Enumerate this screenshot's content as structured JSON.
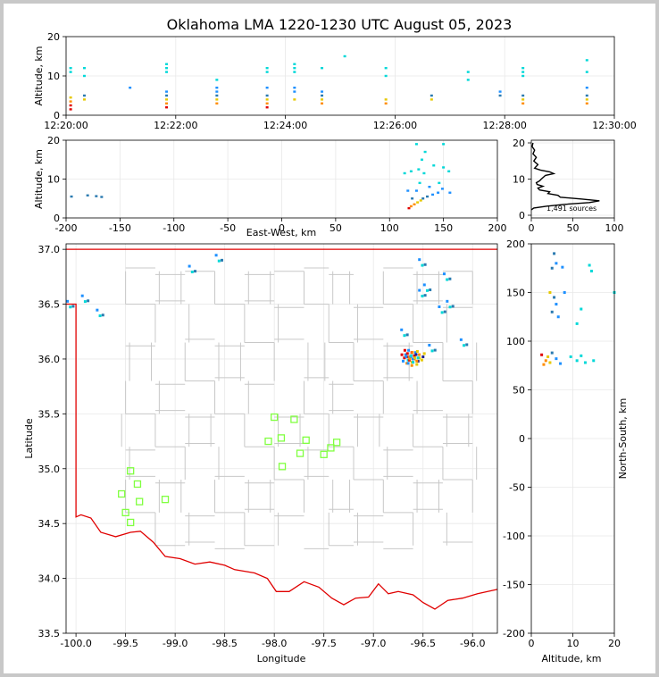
{
  "figure": {
    "title": "Oklahoma LMA 1220-1230 UTC August 05, 2023"
  },
  "colors": {
    "county_lines": "#c8c8c8",
    "border": "#e00000",
    "station": "#80ff40",
    "profile": "#000000"
  },
  "chart_data": [
    {
      "id": "time_height",
      "type": "scatter",
      "xlabel": "",
      "ylabel": "Altitude, km",
      "xlim": [
        "12:20:00",
        "12:30:00"
      ],
      "ylim": [
        0,
        20
      ],
      "xticks": [
        "12:20:00",
        "12:22:00",
        "12:24:00",
        "12:26:00",
        "12:28:00",
        "12:30:00"
      ],
      "yticks": [
        0,
        10,
        20
      ],
      "clusters": [
        {
          "t": "12:20:05",
          "alts": [
            1.5,
            2.5,
            3.5,
            4.5,
            11,
            12
          ]
        },
        {
          "t": "12:20:20",
          "alts": [
            4,
            5,
            10,
            12
          ]
        },
        {
          "t": "12:21:10",
          "alts": [
            7
          ]
        },
        {
          "t": "12:21:50",
          "alts": [
            2,
            3,
            4,
            5,
            6,
            11,
            12,
            13
          ]
        },
        {
          "t": "12:22:45",
          "alts": [
            3,
            4,
            5,
            6,
            7,
            9
          ]
        },
        {
          "t": "12:23:40",
          "alts": [
            2,
            3,
            4,
            5,
            7,
            11,
            12
          ]
        },
        {
          "t": "12:24:10",
          "alts": [
            4,
            6,
            7,
            11,
            12,
            13
          ]
        },
        {
          "t": "12:24:40",
          "alts": [
            3,
            4,
            5,
            6,
            12
          ]
        },
        {
          "t": "12:25:05",
          "alts": [
            15
          ]
        },
        {
          "t": "12:25:50",
          "alts": [
            3,
            4,
            10,
            12
          ]
        },
        {
          "t": "12:26:40",
          "alts": [
            4,
            5
          ]
        },
        {
          "t": "12:27:20",
          "alts": [
            9,
            11
          ]
        },
        {
          "t": "12:27:55",
          "alts": [
            5,
            6
          ]
        },
        {
          "t": "12:28:20",
          "alts": [
            3,
            4,
            5,
            10,
            11,
            12
          ]
        },
        {
          "t": "12:29:30",
          "alts": [
            3,
            4,
            5,
            7,
            11,
            14
          ]
        }
      ]
    },
    {
      "id": "ew_height",
      "type": "scatter",
      "xlabel": "East-West, km",
      "ylabel": "Altitude, km",
      "xlim": [
        -200,
        200
      ],
      "ylim": [
        0,
        20
      ],
      "xticks": [
        -200,
        -150,
        -100,
        -50,
        0,
        50,
        100,
        150,
        200
      ],
      "yticks": [
        0,
        10,
        20
      ],
      "points": [
        {
          "x": -195,
          "y": 5.5
        },
        {
          "x": -180,
          "y": 5.8
        },
        {
          "x": -172,
          "y": 5.6
        },
        {
          "x": -167,
          "y": 5.4
        },
        {
          "x": 118,
          "y": 2.5
        },
        {
          "x": 120,
          "y": 3
        },
        {
          "x": 123,
          "y": 3.5
        },
        {
          "x": 126,
          "y": 4
        },
        {
          "x": 129,
          "y": 4.5
        },
        {
          "x": 121,
          "y": 5
        },
        {
          "x": 131,
          "y": 5
        },
        {
          "x": 135,
          "y": 5.5
        },
        {
          "x": 140,
          "y": 6
        },
        {
          "x": 145,
          "y": 6.5
        },
        {
          "x": 117,
          "y": 7
        },
        {
          "x": 125,
          "y": 7
        },
        {
          "x": 149,
          "y": 7.5
        },
        {
          "x": 137,
          "y": 8
        },
        {
          "x": 128,
          "y": 9
        },
        {
          "x": 146,
          "y": 9
        },
        {
          "x": 156,
          "y": 6.5
        },
        {
          "x": 114,
          "y": 11.5
        },
        {
          "x": 120,
          "y": 12
        },
        {
          "x": 127,
          "y": 12.5
        },
        {
          "x": 132,
          "y": 11.5
        },
        {
          "x": 150,
          "y": 13
        },
        {
          "x": 155,
          "y": 12
        },
        {
          "x": 130,
          "y": 15
        },
        {
          "x": 133,
          "y": 17
        },
        {
          "x": 125,
          "y": 19
        },
        {
          "x": 150,
          "y": 19
        },
        {
          "x": 141,
          "y": 13.5
        }
      ]
    },
    {
      "id": "altitude_histogram",
      "type": "line",
      "xlabel": "",
      "ylabel": "",
      "xlim": [
        0,
        100
      ],
      "ylim": [
        0,
        20
      ],
      "xticks": [
        0,
        50,
        100
      ],
      "yticks": [
        0,
        10,
        20
      ],
      "annotation": "1,491 sources",
      "profile": [
        {
          "alt": 1.5,
          "count": 0
        },
        {
          "alt": 2,
          "count": 3
        },
        {
          "alt": 2.5,
          "count": 18
        },
        {
          "alt": 3,
          "count": 40
        },
        {
          "alt": 3.5,
          "count": 70
        },
        {
          "alt": 4,
          "count": 82
        },
        {
          "alt": 4.5,
          "count": 60
        },
        {
          "alt": 5,
          "count": 35
        },
        {
          "alt": 5.5,
          "count": 32
        },
        {
          "alt": 6,
          "count": 20
        },
        {
          "alt": 6.5,
          "count": 22
        },
        {
          "alt": 7,
          "count": 10
        },
        {
          "alt": 7.5,
          "count": 8
        },
        {
          "alt": 8,
          "count": 14
        },
        {
          "alt": 8.5,
          "count": 7
        },
        {
          "alt": 9,
          "count": 6
        },
        {
          "alt": 9.5,
          "count": 10
        },
        {
          "alt": 10,
          "count": 12
        },
        {
          "alt": 11,
          "count": 17
        },
        {
          "alt": 11.5,
          "count": 27
        },
        {
          "alt": 12,
          "count": 22
        },
        {
          "alt": 12.5,
          "count": 11
        },
        {
          "alt": 13,
          "count": 4
        },
        {
          "alt": 14,
          "count": 8
        },
        {
          "alt": 15,
          "count": 3
        },
        {
          "alt": 16,
          "count": 6
        },
        {
          "alt": 17,
          "count": 2
        },
        {
          "alt": 18,
          "count": 4
        },
        {
          "alt": 19,
          "count": 1
        },
        {
          "alt": 20,
          "count": 2
        }
      ]
    },
    {
      "id": "plan_view",
      "type": "scatter",
      "xlabel": "Longitude",
      "ylabel": "Latitude",
      "xlim": [
        -100.1,
        -95.75
      ],
      "ylim": [
        33.5,
        37.05
      ],
      "xticks": [
        "-100.0",
        "-99.5",
        "-99.0",
        "-98.5",
        "-98.0",
        "-97.5",
        "-97.0",
        "-96.5",
        "-96.0"
      ],
      "yticks": [
        "33.5",
        "34.0",
        "34.5",
        "35.0",
        "35.5",
        "36.0",
        "36.5",
        "37.0"
      ],
      "sources": [
        {
          "lon": -96.65,
          "lat": 36.0
        },
        {
          "lon": -96.6,
          "lat": 35.98
        },
        {
          "lon": -96.55,
          "lat": 36.02
        },
        {
          "lon": -96.62,
          "lat": 36.04
        },
        {
          "lon": -96.5,
          "lat": 36.6
        },
        {
          "lon": -96.45,
          "lat": 36.65
        },
        {
          "lon": -96.5,
          "lat": 36.88
        },
        {
          "lon": -96.25,
          "lat": 36.75
        },
        {
          "lon": -96.3,
          "lat": 36.45
        },
        {
          "lon": -96.22,
          "lat": 36.5
        },
        {
          "lon": -96.08,
          "lat": 36.15
        },
        {
          "lon": -96.68,
          "lat": 36.24
        },
        {
          "lon": -96.4,
          "lat": 36.1
        },
        {
          "lon": -98.82,
          "lat": 36.82
        },
        {
          "lon": -99.75,
          "lat": 36.42
        },
        {
          "lon": -98.55,
          "lat": 36.92
        },
        {
          "lon": -99.9,
          "lat": 36.55
        },
        {
          "lon": -100.05,
          "lat": 36.5
        }
      ],
      "stations": [
        {
          "lon": -98.0,
          "lat": 35.47
        },
        {
          "lon": -97.8,
          "lat": 35.45
        },
        {
          "lon": -98.06,
          "lat": 35.25
        },
        {
          "lon": -97.93,
          "lat": 35.28
        },
        {
          "lon": -97.68,
          "lat": 35.26
        },
        {
          "lon": -97.37,
          "lat": 35.24
        },
        {
          "lon": -97.43,
          "lat": 35.19
        },
        {
          "lon": -97.74,
          "lat": 35.14
        },
        {
          "lon": -97.5,
          "lat": 35.13
        },
        {
          "lon": -97.92,
          "lat": 35.02
        },
        {
          "lon": -99.45,
          "lat": 34.98
        },
        {
          "lon": -99.38,
          "lat": 34.86
        },
        {
          "lon": -99.54,
          "lat": 34.77
        },
        {
          "lon": -99.36,
          "lat": 34.7
        },
        {
          "lon": -99.1,
          "lat": 34.72
        },
        {
          "lon": -99.5,
          "lat": 34.6
        },
        {
          "lon": -99.45,
          "lat": 34.51
        }
      ]
    },
    {
      "id": "ns_height",
      "type": "scatter",
      "xlabel": "Altitude, km",
      "ylabel": "North-South, km",
      "xlim": [
        0,
        20
      ],
      "ylim": [
        -200,
        200
      ],
      "xticks": [
        0,
        10,
        20
      ],
      "yticks": [
        -200,
        -150,
        -100,
        -50,
        0,
        50,
        100,
        150,
        200
      ],
      "points": [
        {
          "x": 3,
          "y": 76
        },
        {
          "x": 3.5,
          "y": 80
        },
        {
          "x": 4,
          "y": 84
        },
        {
          "x": 4.5,
          "y": 78
        },
        {
          "x": 5,
          "y": 88
        },
        {
          "x": 6,
          "y": 82
        },
        {
          "x": 7,
          "y": 77
        },
        {
          "x": 2.5,
          "y": 86
        },
        {
          "x": 11,
          "y": 80
        },
        {
          "x": 12,
          "y": 85
        },
        {
          "x": 13,
          "y": 78
        },
        {
          "x": 9.5,
          "y": 84
        },
        {
          "x": 15,
          "y": 80
        },
        {
          "x": 5,
          "y": 130
        },
        {
          "x": 5.5,
          "y": 145
        },
        {
          "x": 6,
          "y": 138
        },
        {
          "x": 4.5,
          "y": 150
        },
        {
          "x": 6.5,
          "y": 125
        },
        {
          "x": 5,
          "y": 175
        },
        {
          "x": 6,
          "y": 180
        },
        {
          "x": 7.5,
          "y": 176
        },
        {
          "x": 5.5,
          "y": 190
        },
        {
          "x": 14,
          "y": 178
        },
        {
          "x": 14.5,
          "y": 172
        },
        {
          "x": 12,
          "y": 133
        },
        {
          "x": 11,
          "y": 118
        },
        {
          "x": 8,
          "y": 150
        },
        {
          "x": 20,
          "y": 150
        }
      ]
    }
  ]
}
